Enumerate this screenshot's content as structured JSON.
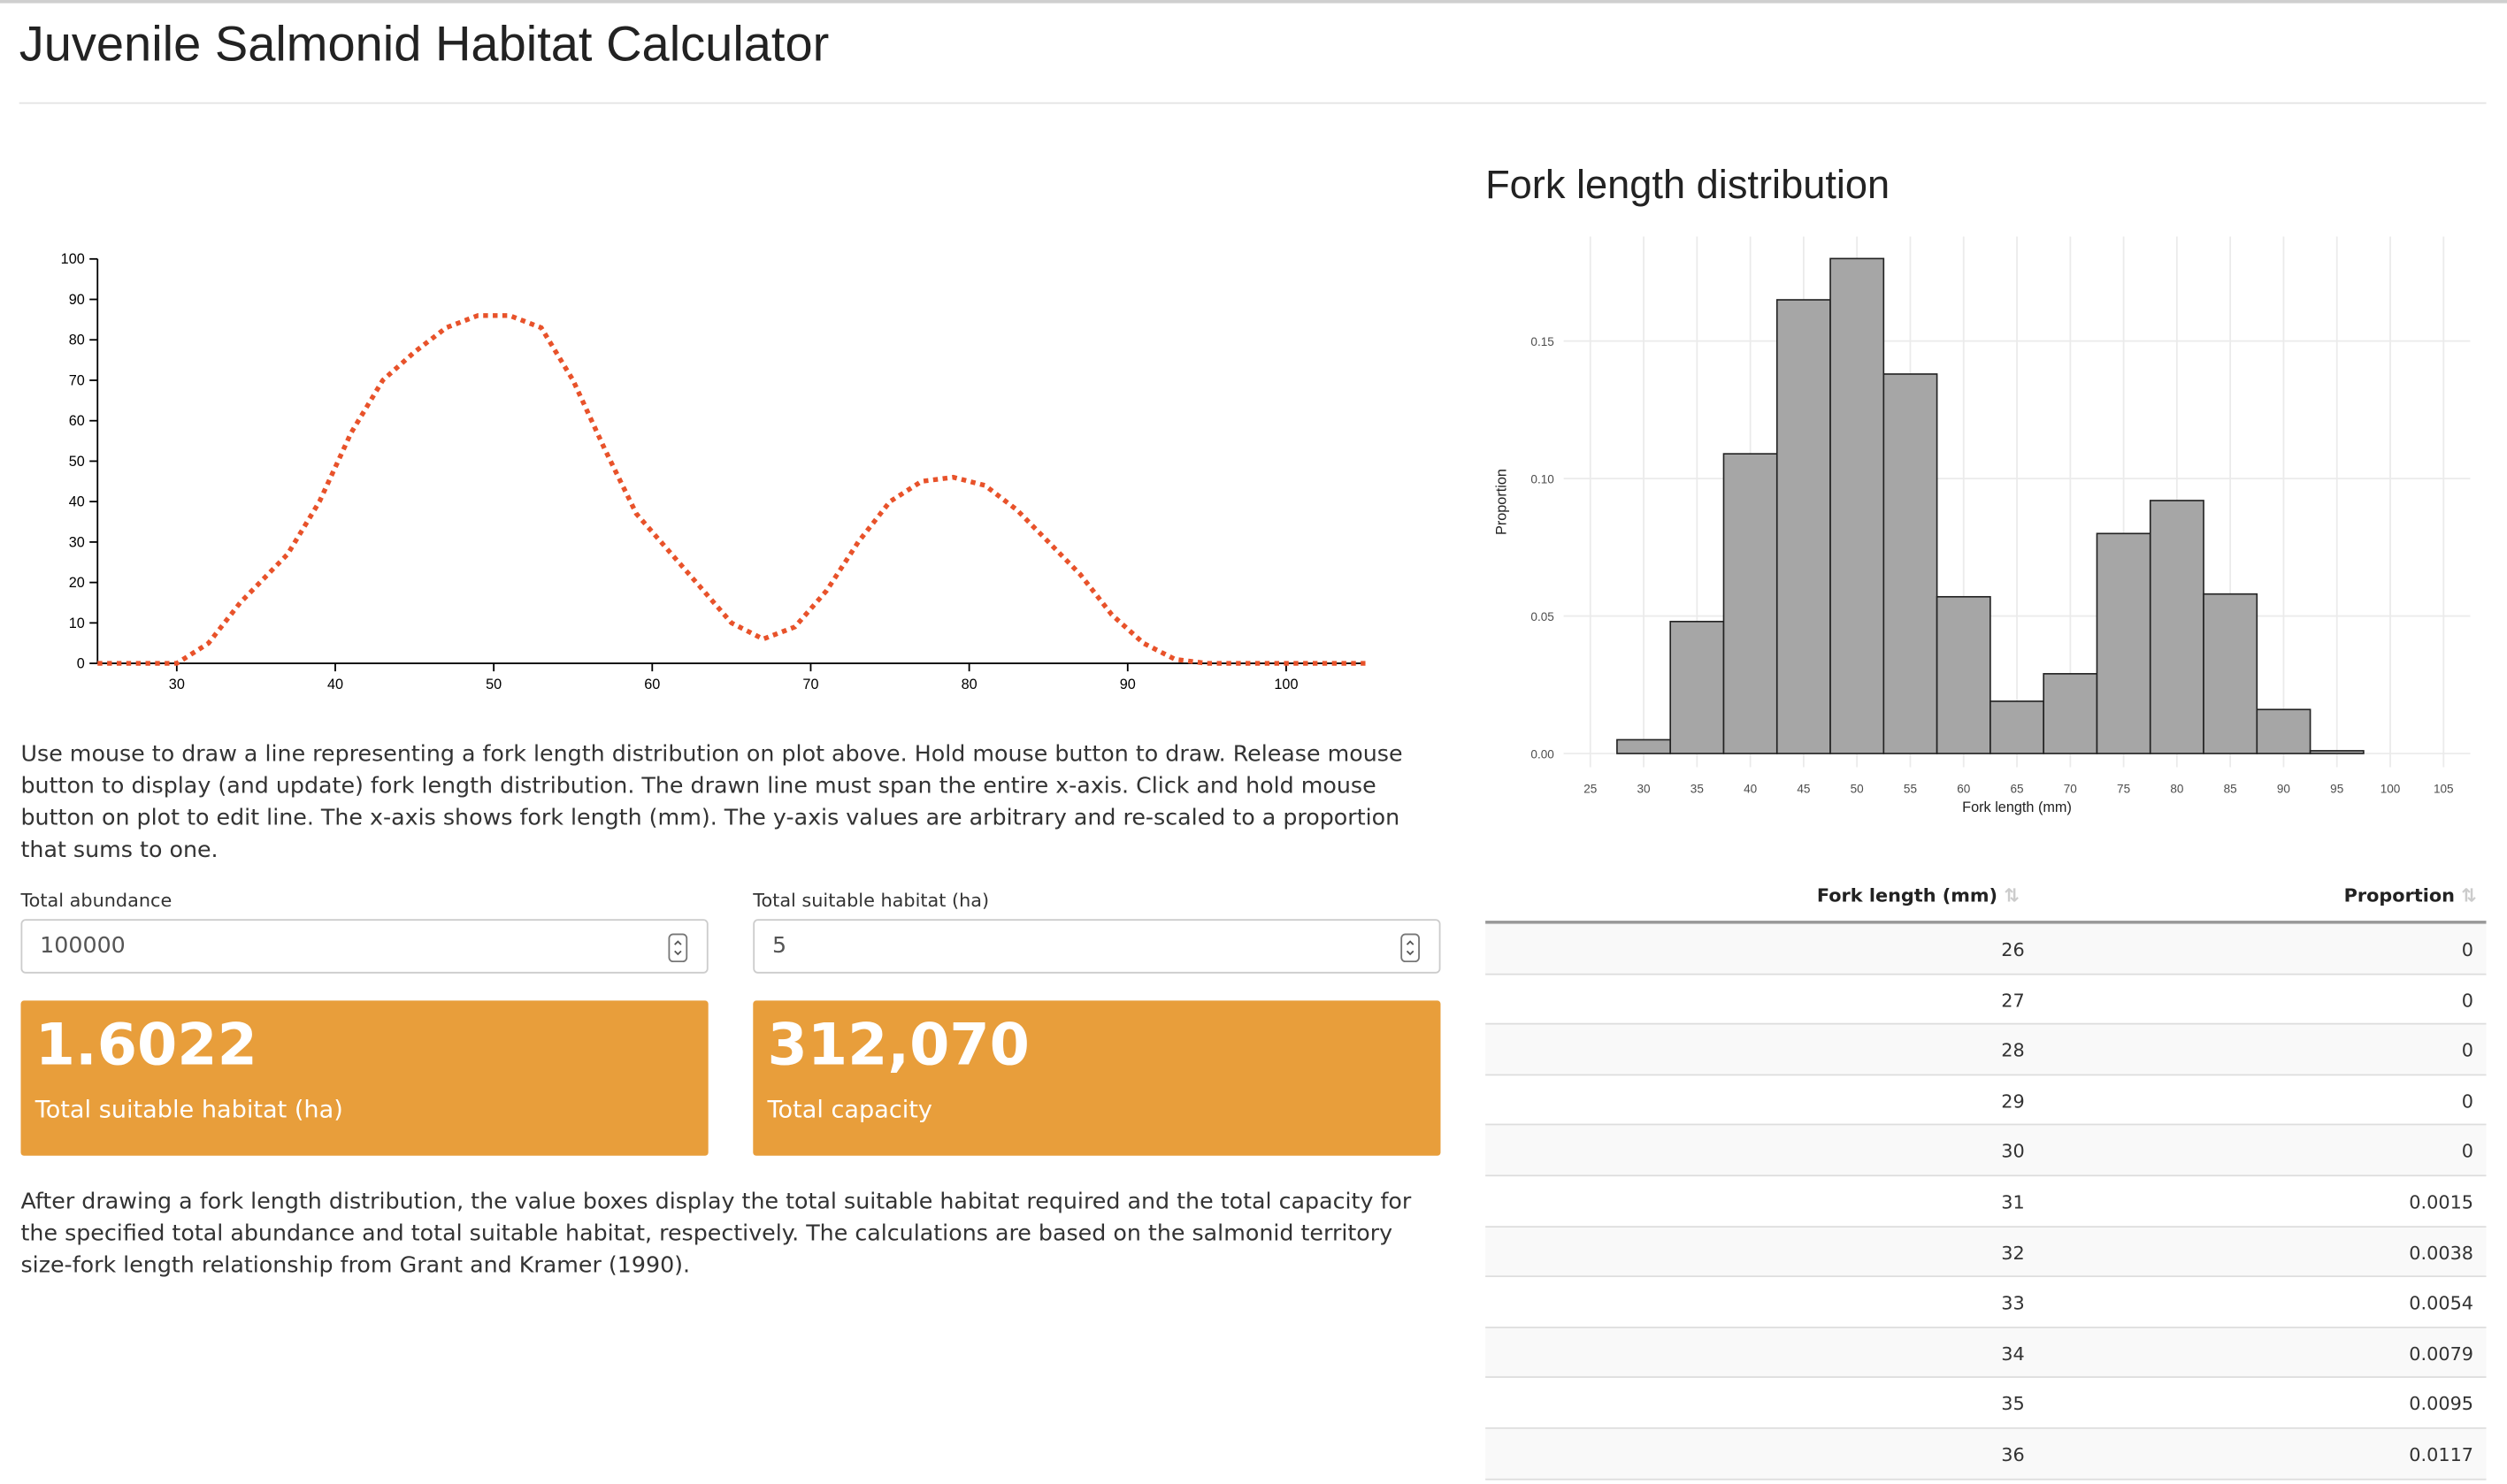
{
  "header": {
    "title": "Juvenile Salmonid Habitat Calculator"
  },
  "chart_data": [
    {
      "type": "line",
      "x": [
        25,
        30,
        32,
        34,
        37,
        39,
        41,
        43,
        45,
        47,
        49,
        51,
        53,
        55,
        57,
        59,
        61,
        63,
        65,
        67,
        69,
        71,
        73,
        75,
        77,
        79,
        81,
        83,
        85,
        87,
        89,
        91,
        93,
        95,
        105
      ],
      "values": [
        0,
        0,
        5,
        15,
        27,
        40,
        57,
        70,
        77,
        83,
        86,
        86,
        83,
        70,
        53,
        37,
        28,
        19,
        10,
        6,
        9,
        18,
        30,
        40,
        45,
        46,
        44,
        38,
        30,
        22,
        12,
        5,
        1,
        0,
        0
      ],
      "color": "#e8522a",
      "xlim": [
        25,
        105
      ],
      "xticks": [
        30,
        40,
        50,
        60,
        70,
        80,
        90,
        100
      ],
      "ylim": [
        0,
        100
      ],
      "yticks": [
        0,
        10,
        20,
        30,
        40,
        50,
        60,
        70,
        80,
        90,
        100
      ]
    },
    {
      "type": "histogram",
      "title": "Fork length distribution",
      "x_label": "Fork length (mm)",
      "y_label": "Proportion",
      "bins": [
        22.5,
        27.5,
        32.5,
        37.5,
        42.5,
        47.5,
        52.5,
        57.5,
        62.5,
        67.5,
        72.5,
        77.5,
        82.5,
        87.5,
        92.5,
        97.5,
        102.5,
        107.5
      ],
      "values": [
        0,
        0.005,
        0.048,
        0.109,
        0.165,
        0.18,
        0.138,
        0.057,
        0.019,
        0.029,
        0.08,
        0.092,
        0.058,
        0.016,
        0.001,
        0,
        0
      ],
      "color": "#a6a6a6",
      "grid": true,
      "xlim": [
        22.5,
        107.5
      ],
      "xticks": [
        25,
        30,
        35,
        40,
        45,
        50,
        55,
        60,
        65,
        70,
        75,
        80,
        85,
        90,
        95,
        100,
        105
      ],
      "ylim": [
        -0.005,
        0.188
      ],
      "yticks": [
        {
          "value": 0,
          "label": "0.00"
        },
        {
          "value": 0.05,
          "label": "0.05"
        },
        {
          "value": 0.1,
          "label": "0.10"
        },
        {
          "value": 0.15,
          "label": "0.15"
        }
      ]
    }
  ],
  "description": "Use mouse to draw a line representing a fork length distribution on plot above. Hold mouse button to draw. Release mouse button to display (and update) fork length distribution. The drawn line must span the entire x-axis. Click and hold mouse button on plot to edit line. The x-axis shows fork length (mm). The y-axis values are arbitrary and re-scaled to a proportion that sums to one.",
  "inputs": [
    {
      "label": "Total abundance",
      "value": "100000"
    },
    {
      "label": "Total suitable habitat (ha)",
      "value": "5"
    }
  ],
  "value_boxes": [
    {
      "value": "1.6022",
      "label": "Total suitable habitat (ha)"
    },
    {
      "value": "312,070",
      "label": "Total capacity"
    }
  ],
  "note": "After drawing a fork length distribution, the value boxes display the total suitable habitat required and the total capacity for the specified total abundance and total suitable habitat, respectively. The calculations are based on the salmonid territory size-fork length relationship from Grant and Kramer (1990).",
  "table": {
    "columns": [
      "Fork length (mm)",
      "Proportion"
    ],
    "rows": [
      [
        "26",
        "0"
      ],
      [
        "27",
        "0"
      ],
      [
        "28",
        "0"
      ],
      [
        "29",
        "0"
      ],
      [
        "30",
        "0"
      ],
      [
        "31",
        "0.0015"
      ],
      [
        "32",
        "0.0038"
      ],
      [
        "33",
        "0.0054"
      ],
      [
        "34",
        "0.0079"
      ],
      [
        "35",
        "0.0095"
      ],
      [
        "36",
        "0.0117"
      ]
    ]
  }
}
